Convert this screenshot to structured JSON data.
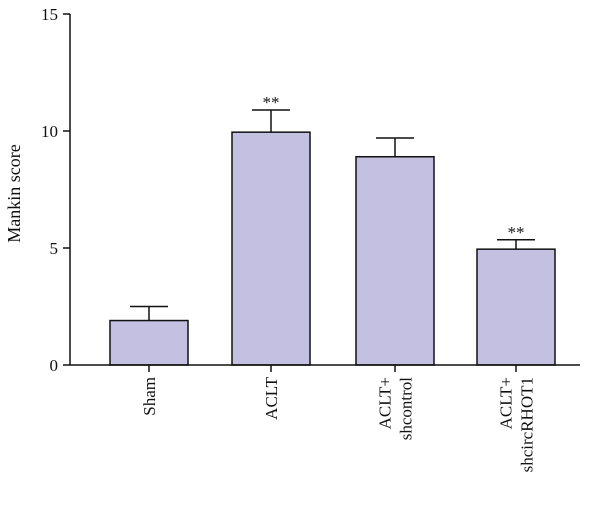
{
  "chart_data": {
    "type": "bar",
    "title": "",
    "xlabel": "",
    "ylabel": "Mankin score",
    "ylim": [
      0,
      15
    ],
    "yticks": [
      0,
      5,
      10,
      15
    ],
    "grid": false,
    "legend": "none",
    "categories": [
      [
        "Sham"
      ],
      [
        "ACLT"
      ],
      [
        "ACLT+",
        "shcontrol"
      ],
      [
        "ACLT+",
        "shcircRHOT1"
      ]
    ],
    "values": [
      1.9,
      9.95,
      8.9,
      4.95
    ],
    "errors": [
      0.6,
      0.95,
      0.8,
      0.4
    ],
    "annotations": [
      "",
      "**",
      "",
      "**"
    ],
    "colors": {
      "bar_fill": "#c3c0e2",
      "bar_stroke": "#111111",
      "axis": "#111111"
    }
  }
}
